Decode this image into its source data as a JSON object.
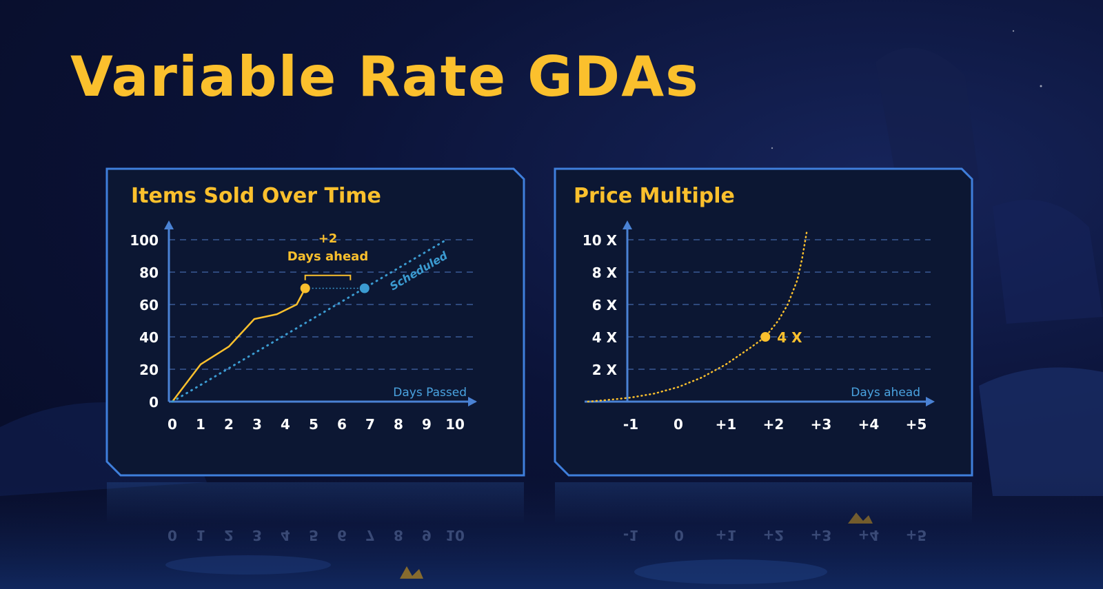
{
  "title": "Variable Rate GDAs",
  "colors": {
    "accent": "#fbc02d",
    "scheduled": "#3b9bd1",
    "axis": "#4a82d4",
    "panel_border": "#3f7fdc",
    "panel_bg": "#0c1733",
    "text": "#ffffff"
  },
  "chart_data": [
    {
      "type": "line",
      "title": "Items Sold Over Time",
      "xlabel": "Days Passed",
      "ylabel": "",
      "xlim": [
        0,
        10
      ],
      "ylim": [
        0,
        100
      ],
      "x_ticks": [
        "0",
        "1",
        "2",
        "3",
        "4",
        "5",
        "6",
        "7",
        "8",
        "9",
        "10"
      ],
      "y_ticks": [
        "0",
        "20",
        "40",
        "60",
        "80",
        "100"
      ],
      "grid": true,
      "series": [
        {
          "x": [
            0,
            1,
            2,
            2.9,
            3.7,
            4.4,
            4.7
          ],
          "y": [
            0,
            23,
            34,
            51,
            54,
            60,
            70
          ],
          "color": "#fbc02d",
          "style": "solid"
        },
        {
          "name": "Scheduled",
          "x": [
            0,
            9.6
          ],
          "y": [
            0,
            99
          ],
          "color": "#3b9bd1",
          "style": "dotted"
        }
      ],
      "points": [
        {
          "x": 4.7,
          "y": 70,
          "color": "#fbc02d"
        },
        {
          "x": 6.8,
          "y": 70,
          "color": "#3b9bd1"
        }
      ],
      "annotations": {
        "days_ahead_value": "+2",
        "days_ahead_label": "Days ahead",
        "bracket_from_x": 4.7,
        "bracket_to_x": 6.3,
        "bracket_y": 78
      }
    },
    {
      "type": "line",
      "title": "Price Multiple",
      "xlabel": "Days ahead",
      "ylabel": "",
      "xlim": [
        -1.9,
        5
      ],
      "ylim": [
        0,
        10
      ],
      "x_ticks": [
        "-1",
        "0",
        "+1",
        "+2",
        "+3",
        "+4",
        "+5"
      ],
      "x_tick_values": [
        -1,
        0,
        1,
        2,
        3,
        4,
        5
      ],
      "y_ticks": [
        "2 X",
        "4 X",
        "6 X",
        "8 X",
        "10 X"
      ],
      "y_tick_values": [
        2,
        4,
        6,
        8,
        10
      ],
      "grid": true,
      "series": [
        {
          "x": [
            -1.9,
            -1.5,
            -1,
            -0.5,
            0,
            0.5,
            1,
            1.5,
            1.83,
            2.1,
            2.3,
            2.5,
            2.6,
            2.7
          ],
          "y": [
            0,
            0.1,
            0.25,
            0.5,
            0.9,
            1.5,
            2.3,
            3.3,
            4,
            5,
            6,
            7.5,
            8.8,
            10.5
          ],
          "color": "#fbc02d",
          "style": "dotted"
        }
      ],
      "points": [
        {
          "x": 1.83,
          "y": 4,
          "color": "#fbc02d"
        }
      ],
      "point_label": "4 X"
    }
  ]
}
